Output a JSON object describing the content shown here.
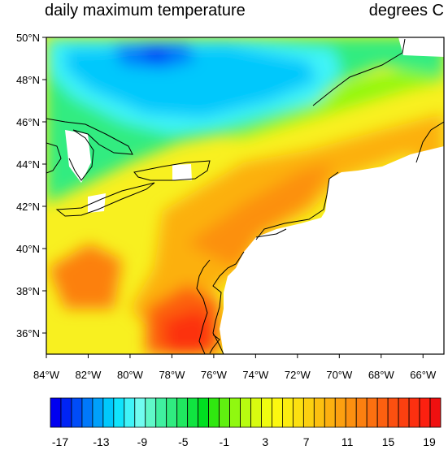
{
  "title_left": "daily maximum temperature",
  "title_right": "degrees C",
  "map": {
    "lon_range": [
      -84,
      -65
    ],
    "lat_range": [
      35,
      50
    ],
    "lon_ticks": [
      {
        "value": -84,
        "label": "84°W"
      },
      {
        "value": -82,
        "label": "82°W"
      },
      {
        "value": -80,
        "label": "80°W"
      },
      {
        "value": -78,
        "label": "78°W"
      },
      {
        "value": -76,
        "label": "76°W"
      },
      {
        "value": -74,
        "label": "74°W"
      },
      {
        "value": -72,
        "label": "72°W"
      },
      {
        "value": -70,
        "label": "70°W"
      },
      {
        "value": -68,
        "label": "68°W"
      },
      {
        "value": -66,
        "label": "66°W"
      }
    ],
    "lat_ticks": [
      {
        "value": 50,
        "label": "50°N"
      },
      {
        "value": 48,
        "label": "48°N"
      },
      {
        "value": 46,
        "label": "46°N"
      },
      {
        "value": 44,
        "label": "44°N"
      },
      {
        "value": 42,
        "label": "42°N"
      },
      {
        "value": 40,
        "label": "40°N"
      },
      {
        "value": 38,
        "label": "38°N"
      },
      {
        "value": 36,
        "label": "36°N"
      }
    ]
  },
  "colorbar": {
    "labels": [
      "-17",
      "-13",
      "-9",
      "-5",
      "-1",
      "3",
      "7",
      "11",
      "15",
      "19"
    ],
    "colors": [
      "#0000f0",
      "#0024f5",
      "#004cf8",
      "#0078fa",
      "#00a0fb",
      "#00c8fc",
      "#10e4fc",
      "#40f4f8",
      "#70fcf0",
      "#60f8c8",
      "#40f0a0",
      "#30ec80",
      "#20e860",
      "#10e440",
      "#00e020",
      "#30e810",
      "#60f010",
      "#90f810",
      "#b8fc10",
      "#d8fc10",
      "#f0fc10",
      "#fcf810",
      "#fcec10",
      "#fce010",
      "#fcd010",
      "#fcc010",
      "#fcb010",
      "#fca010",
      "#fc9010",
      "#fc8010",
      "#fc7010",
      "#fc6010",
      "#fc5010",
      "#fc4010",
      "#fc3010",
      "#fc2010",
      "#f01010"
    ]
  },
  "land_color": "#ffffff",
  "missing_color": "#c8c8c8"
}
